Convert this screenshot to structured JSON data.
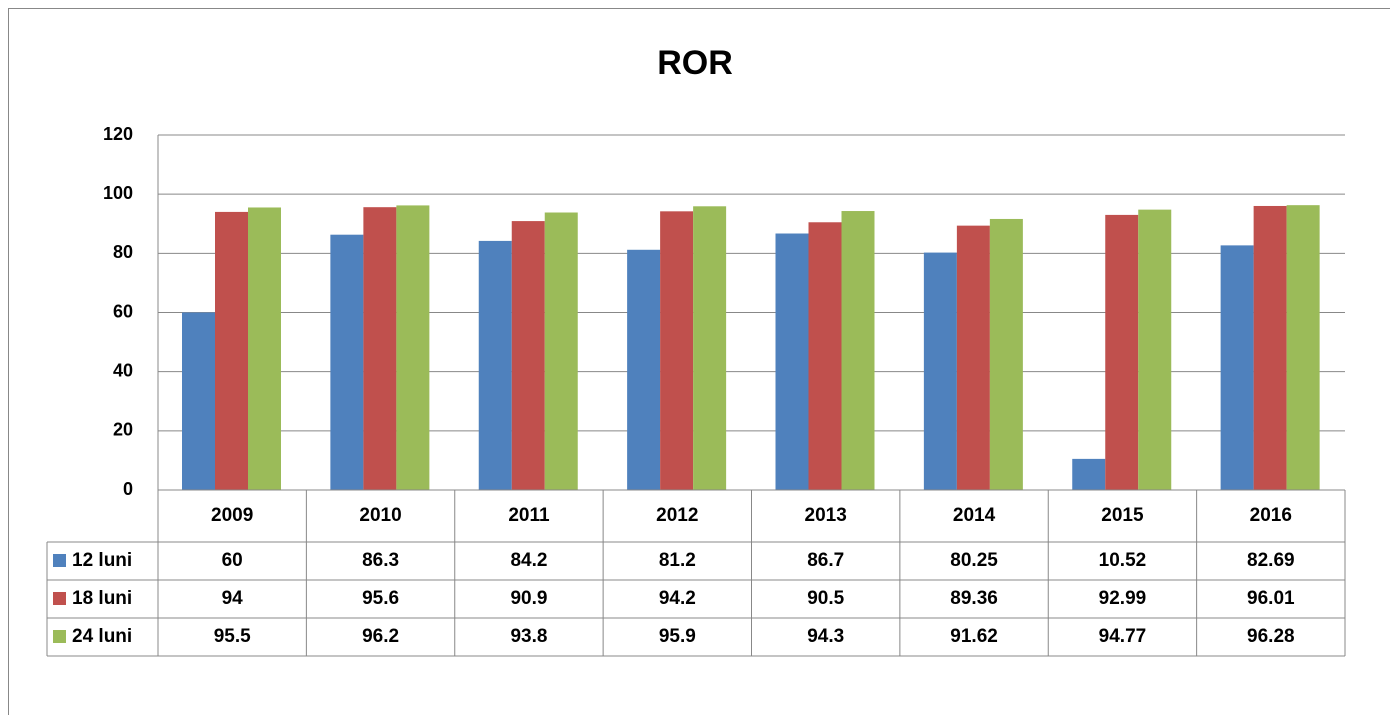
{
  "chart_data": {
    "type": "bar",
    "title": "ROR",
    "categories": [
      "2009",
      "2010",
      "2011",
      "2012",
      "2013",
      "2014",
      "2015",
      "2016"
    ],
    "series": [
      {
        "name": "12 luni",
        "color": "#4f81bd",
        "values": [
          60,
          86.3,
          84.2,
          81.2,
          86.7,
          80.25,
          10.52,
          82.69
        ]
      },
      {
        "name": "18 luni",
        "color": "#c0504d",
        "values": [
          94,
          95.6,
          90.9,
          94.2,
          90.5,
          89.36,
          92.99,
          96.01
        ]
      },
      {
        "name": "24 luni",
        "color": "#9bbb59",
        "values": [
          95.5,
          96.2,
          93.8,
          95.9,
          94.3,
          91.62,
          94.77,
          96.28
        ]
      }
    ],
    "ylim": [
      0,
      120
    ],
    "yticks": [
      0,
      20,
      40,
      60,
      80,
      100,
      120
    ],
    "grid": true
  }
}
